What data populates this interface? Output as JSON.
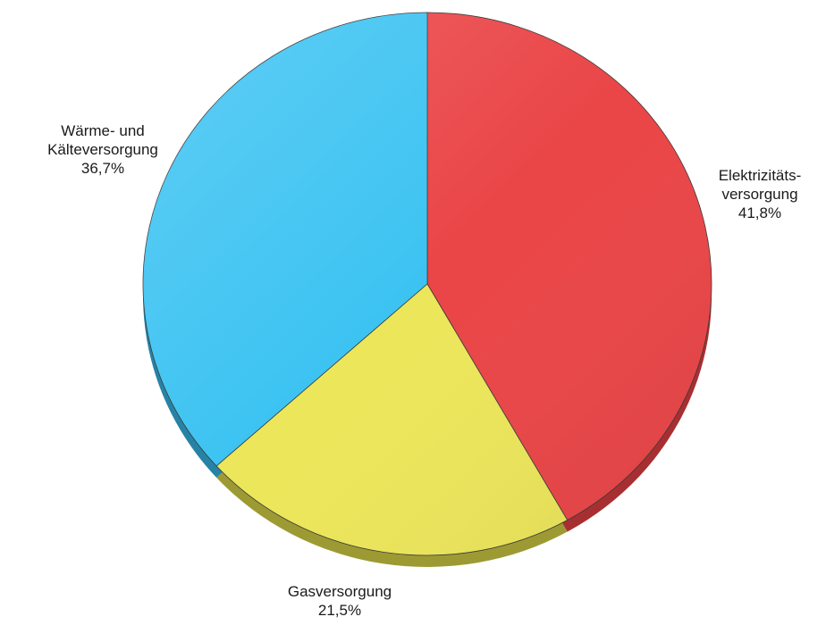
{
  "chart_data": {
    "type": "pie",
    "title": "",
    "slices": [
      {
        "label": [
          "Elektrizitäts-",
          "versorgung"
        ],
        "value_text": "41,8%",
        "value": 41.8,
        "color": "#ea4547",
        "shade": "#a82f31"
      },
      {
        "label": [
          "Gasversorgung"
        ],
        "value_text": "21,5%",
        "value": 21.5,
        "color": "#ece65a",
        "shade": "#9d9a33"
      },
      {
        "label": [
          "Wärme- und",
          "Kälteversorgung"
        ],
        "value_text": "36,7%",
        "value": 36.7,
        "color": "#3cc3f2",
        "shade": "#2683a6"
      }
    ],
    "start_angle": "12 o'clock",
    "direction": "clockwise",
    "style": "3D tilted pie with depth"
  }
}
